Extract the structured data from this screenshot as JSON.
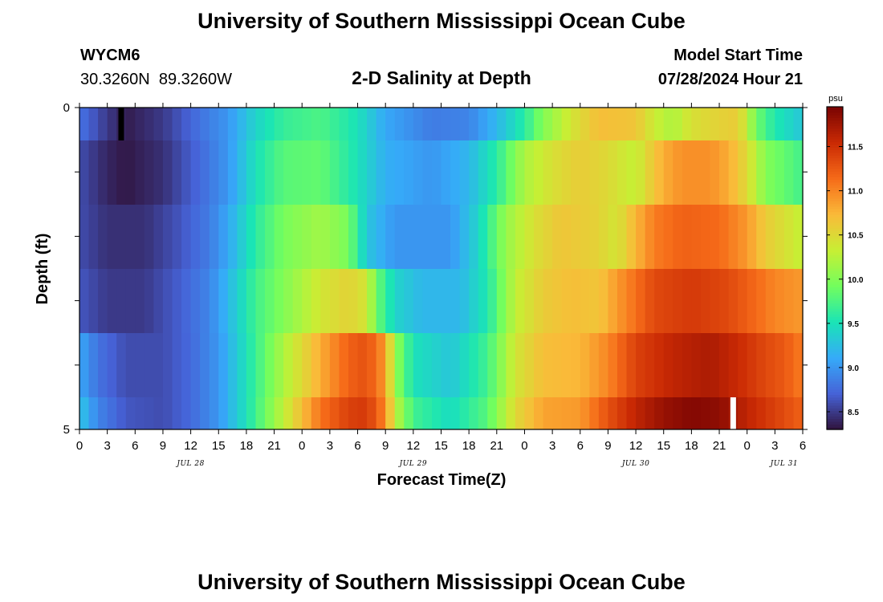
{
  "header": {
    "title": "University of Southern Mississippi Ocean Cube",
    "station_id": "WYCM6",
    "coordinates": "30.3260N  89.3260W",
    "subtitle": "2-D Salinity at Depth",
    "model_start_label": "Model Start Time",
    "model_start_value": "07/28/2024 Hour 21"
  },
  "footer": {
    "title": "University of Southern Mississippi Ocean Cube"
  },
  "colors": {
    "colormap": [
      "#30123b",
      "#4662d7",
      "#36aaf9",
      "#1ae4b6",
      "#72fe5e",
      "#c7ef34",
      "#faba39",
      "#f66b19",
      "#ca2a04",
      "#7a0403"
    ]
  },
  "chart_data": {
    "type": "heatmap",
    "xlabel": "Forecast Time(Z)",
    "ylabel": "Depth (ft)",
    "x_tick_labels": [
      "0",
      "3",
      "6",
      "9",
      "12",
      "15",
      "18",
      "21",
      "0",
      "3",
      "6",
      "9",
      "12",
      "15",
      "18",
      "21",
      "0",
      "3",
      "6",
      "9",
      "12",
      "15",
      "18",
      "21",
      "0",
      "3",
      "6"
    ],
    "date_labels": [
      {
        "label": "JUL 28",
        "hour": 12
      },
      {
        "label": "JUL 29",
        "hour": 36
      },
      {
        "label": "JUL 30",
        "hour": 60
      },
      {
        "label": "JUL 31",
        "hour": 76
      }
    ],
    "x_range_hours": [
      0,
      78
    ],
    "y_tick_labels": [
      "0",
      "",
      "",
      "",
      "",
      "5"
    ],
    "y_range": [
      0,
      5
    ],
    "colorbar": {
      "unit": "psu",
      "min": 8.3,
      "max": 11.95,
      "ticks": [
        "8.5",
        "9.0",
        "9.5",
        "10.0",
        "10.5",
        "11.0",
        "11.5"
      ]
    },
    "layers": [
      {
        "depth": "0-0.5 ft",
        "keyframes": [
          [
            0,
            8.8
          ],
          [
            3,
            8.5
          ],
          [
            5,
            8.35
          ],
          [
            9,
            8.5
          ],
          [
            13,
            8.8
          ],
          [
            16,
            9.0
          ],
          [
            19,
            9.4
          ],
          [
            22,
            9.65
          ],
          [
            26,
            9.75
          ],
          [
            30,
            9.5
          ],
          [
            33,
            9.1
          ],
          [
            38,
            8.85
          ],
          [
            42,
            8.9
          ],
          [
            45,
            9.2
          ],
          [
            48,
            9.6
          ],
          [
            50,
            10.0
          ],
          [
            53,
            10.4
          ],
          [
            56,
            10.7
          ],
          [
            60,
            10.65
          ],
          [
            62,
            10.35
          ],
          [
            64,
            10.2
          ],
          [
            66,
            10.45
          ],
          [
            69,
            10.55
          ],
          [
            71,
            10.6
          ],
          [
            72,
            10.3
          ],
          [
            73,
            9.9
          ],
          [
            75,
            9.55
          ],
          [
            78,
            9.3
          ]
        ]
      },
      {
        "depth": "0.5-1.5 ft",
        "keyframes": [
          [
            0,
            8.6
          ],
          [
            3,
            8.4
          ],
          [
            5,
            8.33
          ],
          [
            9,
            8.45
          ],
          [
            13,
            8.75
          ],
          [
            16,
            9.0
          ],
          [
            19,
            9.5
          ],
          [
            22,
            9.8
          ],
          [
            26,
            9.85
          ],
          [
            30,
            9.5
          ],
          [
            33,
            9.15
          ],
          [
            38,
            9.0
          ],
          [
            42,
            9.2
          ],
          [
            45,
            9.6
          ],
          [
            48,
            10.2
          ],
          [
            51,
            10.45
          ],
          [
            54,
            10.6
          ],
          [
            57,
            10.5
          ],
          [
            60,
            10.3
          ],
          [
            61,
            10.5
          ],
          [
            63,
            10.8
          ],
          [
            65,
            10.95
          ],
          [
            68,
            10.95
          ],
          [
            70,
            10.8
          ],
          [
            72,
            10.5
          ],
          [
            74,
            10.0
          ],
          [
            78,
            9.7
          ]
        ]
      },
      {
        "depth": "1.5-2.5 ft",
        "keyframes": [
          [
            0,
            8.6
          ],
          [
            3,
            8.45
          ],
          [
            7,
            8.45
          ],
          [
            11,
            8.65
          ],
          [
            14,
            8.85
          ],
          [
            16,
            9.1
          ],
          [
            19,
            9.6
          ],
          [
            22,
            9.95
          ],
          [
            26,
            10.15
          ],
          [
            29,
            9.95
          ],
          [
            31,
            9.3
          ],
          [
            34,
            9.0
          ],
          [
            40,
            9.0
          ],
          [
            43,
            9.4
          ],
          [
            46,
            10.1
          ],
          [
            49,
            10.45
          ],
          [
            52,
            10.65
          ],
          [
            56,
            10.55
          ],
          [
            58,
            10.4
          ],
          [
            59,
            10.6
          ],
          [
            62,
            11.05
          ],
          [
            65,
            11.2
          ],
          [
            69,
            11.15
          ],
          [
            72,
            10.9
          ],
          [
            74,
            10.6
          ],
          [
            78,
            10.3
          ]
        ]
      },
      {
        "depth": "2.5-3.5 ft",
        "keyframes": [
          [
            0,
            8.65
          ],
          [
            3,
            8.5
          ],
          [
            7,
            8.5
          ],
          [
            11,
            8.7
          ],
          [
            14,
            8.9
          ],
          [
            16,
            9.2
          ],
          [
            19,
            9.7
          ],
          [
            23,
            10.1
          ],
          [
            26,
            10.4
          ],
          [
            29,
            10.55
          ],
          [
            31,
            10.4
          ],
          [
            32,
            9.9
          ],
          [
            34,
            9.4
          ],
          [
            37,
            9.2
          ],
          [
            41,
            9.2
          ],
          [
            44,
            9.55
          ],
          [
            47,
            10.3
          ],
          [
            50,
            10.6
          ],
          [
            53,
            10.7
          ],
          [
            56,
            10.65
          ],
          [
            58,
            10.9
          ],
          [
            62,
            11.35
          ],
          [
            66,
            11.45
          ],
          [
            70,
            11.35
          ],
          [
            73,
            11.15
          ],
          [
            75,
            11.0
          ],
          [
            78,
            10.9
          ]
        ]
      },
      {
        "depth": "3.5-4.5 ft",
        "keyframes": [
          [
            0,
            9.1
          ],
          [
            2,
            8.8
          ],
          [
            5,
            8.6
          ],
          [
            9,
            8.6
          ],
          [
            12,
            8.75
          ],
          [
            15,
            9.0
          ],
          [
            18,
            9.5
          ],
          [
            22,
            10.2
          ],
          [
            26,
            10.8
          ],
          [
            29,
            11.2
          ],
          [
            31,
            11.3
          ],
          [
            33,
            10.9
          ],
          [
            34,
            10.1
          ],
          [
            36,
            9.5
          ],
          [
            40,
            9.3
          ],
          [
            44,
            9.7
          ],
          [
            47,
            10.4
          ],
          [
            50,
            10.7
          ],
          [
            54,
            10.75
          ],
          [
            57,
            11.0
          ],
          [
            60,
            11.4
          ],
          [
            64,
            11.6
          ],
          [
            68,
            11.7
          ],
          [
            71,
            11.55
          ],
          [
            74,
            11.35
          ],
          [
            76,
            11.25
          ],
          [
            78,
            11.05
          ]
        ]
      },
      {
        "depth": "4.5-5 ft",
        "keyframes": [
          [
            0,
            9.3
          ],
          [
            2,
            8.9
          ],
          [
            5,
            8.65
          ],
          [
            9,
            8.6
          ],
          [
            12,
            8.75
          ],
          [
            15,
            9.0
          ],
          [
            18,
            9.5
          ],
          [
            22,
            10.3
          ],
          [
            26,
            11.1
          ],
          [
            29,
            11.4
          ],
          [
            31,
            11.45
          ],
          [
            33,
            11.0
          ],
          [
            34,
            10.3
          ],
          [
            36,
            9.7
          ],
          [
            40,
            9.45
          ],
          [
            44,
            9.8
          ],
          [
            47,
            10.5
          ],
          [
            50,
            10.85
          ],
          [
            54,
            10.9
          ],
          [
            57,
            11.3
          ],
          [
            60,
            11.6
          ],
          [
            63,
            11.8
          ],
          [
            66,
            11.9
          ],
          [
            69,
            11.85
          ],
          [
            72,
            11.6
          ],
          [
            75,
            11.4
          ],
          [
            78,
            11.2
          ]
        ]
      }
    ],
    "missing_cells": [
      {
        "layer": 0,
        "hour": 4.5,
        "fill": "#000000"
      },
      {
        "layer": 5,
        "hour": 70.5,
        "fill": "#ffffff"
      }
    ]
  }
}
